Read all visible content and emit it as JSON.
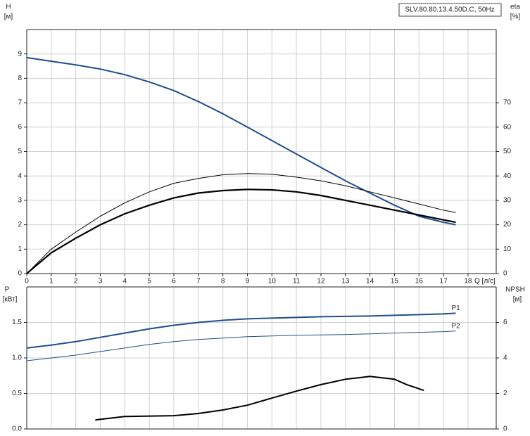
{
  "chart_data": [
    {
      "type": "line",
      "title": "SLV.80.80.13.4.50D.C, 50Hz",
      "ylabel": "H",
      "yunit": "[м]",
      "y2label": "eta",
      "y2unit": "[%]",
      "xlabel": "Q [л/с]",
      "xlim": [
        0,
        19.15
      ],
      "ylim": [
        0,
        10
      ],
      "y2lim": [
        0,
        100
      ],
      "xticks": [
        0,
        1,
        2,
        3,
        4,
        5,
        6,
        7,
        8,
        9,
        10,
        11,
        12,
        13,
        14,
        15,
        16,
        17,
        18
      ],
      "yticks": [
        0,
        1,
        2,
        3,
        4,
        5,
        6,
        7,
        8,
        9
      ],
      "y2ticks": [
        0,
        10,
        20,
        30,
        40,
        50,
        60,
        70
      ],
      "grid": true,
      "series": [
        {
          "color": "#1f4e8c",
          "linewidth": 2,
          "x": [
            0,
            1,
            2,
            3,
            4,
            5,
            6,
            7,
            8,
            9,
            10,
            11,
            12,
            13,
            14,
            15,
            16,
            17,
            17.5
          ],
          "values": [
            8.85,
            8.7,
            8.55,
            8.38,
            8.15,
            7.85,
            7.5,
            7.05,
            6.55,
            6.0,
            5.45,
            4.9,
            4.35,
            3.8,
            3.3,
            2.8,
            2.35,
            2.1,
            2.0
          ]
        },
        {
          "color": "#000000",
          "linewidth": 1,
          "axis": "y2",
          "x": [
            0,
            1,
            2,
            3,
            4,
            5,
            6,
            7,
            8,
            9,
            10,
            11,
            12,
            13,
            14,
            15,
            16,
            17,
            17.5
          ],
          "values": [
            0,
            10,
            17,
            23.5,
            29,
            33.5,
            37,
            39,
            40.5,
            41,
            40.7,
            39.5,
            38,
            36,
            33.5,
            31,
            28.5,
            26,
            25
          ]
        },
        {
          "color": "#000000",
          "linewidth": 2.2,
          "axis": "y2",
          "x": [
            0,
            1,
            2,
            3,
            4,
            5,
            6,
            7,
            8,
            9,
            10,
            11,
            12,
            13,
            14,
            15,
            16,
            17,
            17.5
          ],
          "values": [
            0,
            8.5,
            14.5,
            20,
            24.5,
            28,
            31,
            33,
            34,
            34.5,
            34.3,
            33.5,
            32,
            30,
            28,
            26,
            24,
            22,
            21
          ]
        }
      ]
    },
    {
      "type": "line",
      "ylabel": "P",
      "yunit": "[кВт]",
      "y2label": "NPSH",
      "y2unit": "[м]",
      "xlim": [
        0,
        19.15
      ],
      "ylim": [
        0,
        2
      ],
      "y2lim": [
        0,
        8
      ],
      "yticks": [
        {
          "value": 0,
          "label": "0.0"
        },
        0.5,
        {
          "value": 1,
          "label": "1.0"
        },
        1.5
      ],
      "y2ticks": [
        0,
        2,
        4,
        6
      ],
      "grid": true,
      "series": [
        {
          "name": "P1",
          "color": "#1f4e8c",
          "linewidth": 2,
          "x": [
            0,
            1,
            2,
            3,
            4,
            5,
            6,
            7,
            8,
            9,
            10,
            11,
            12,
            13,
            14,
            15,
            16,
            17,
            17.5
          ],
          "values": [
            1.14,
            1.18,
            1.23,
            1.29,
            1.35,
            1.41,
            1.46,
            1.5,
            1.53,
            1.55,
            1.56,
            1.57,
            1.58,
            1.585,
            1.59,
            1.6,
            1.61,
            1.62,
            1.63
          ]
        },
        {
          "name": "P2",
          "color": "#1f4e8c",
          "linewidth": 1,
          "x": [
            0,
            1,
            2,
            3,
            4,
            5,
            6,
            7,
            8,
            9,
            10,
            11,
            12,
            13,
            14,
            15,
            16,
            17,
            17.5
          ],
          "values": [
            0.96,
            1.0,
            1.04,
            1.09,
            1.14,
            1.19,
            1.23,
            1.26,
            1.28,
            1.3,
            1.31,
            1.32,
            1.325,
            1.33,
            1.34,
            1.35,
            1.36,
            1.37,
            1.38
          ]
        },
        {
          "color": "#000000",
          "linewidth": 2,
          "axis": "y2",
          "x": [
            2.8,
            4,
            6,
            7,
            8,
            9,
            10,
            11,
            12,
            13,
            14,
            15,
            15.5,
            16.2
          ],
          "values": [
            0.51,
            0.7,
            0.75,
            0.87,
            1.07,
            1.34,
            1.74,
            2.13,
            2.5,
            2.8,
            2.96,
            2.8,
            2.5,
            2.17
          ]
        }
      ]
    }
  ]
}
